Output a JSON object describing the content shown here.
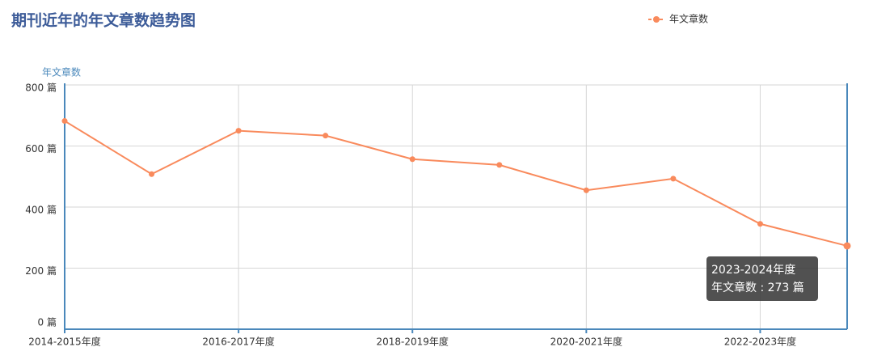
{
  "chart_data": {
    "type": "line",
    "title": "期刊近年的年文章数趋势图",
    "y_label": "年文章数",
    "categories": [
      "2014-2015年度",
      null,
      "2016-2017年度",
      null,
      "2018-2019年度",
      null,
      "2020-2021年度",
      null,
      "2022-2023年度",
      null
    ],
    "series": [
      {
        "name": "年文章数",
        "color": "#f98a5c",
        "values": [
          682,
          508,
          650,
          634,
          557,
          538,
          455,
          493,
          345,
          273
        ]
      }
    ],
    "ylim": [
      0,
      800
    ],
    "yticks": [
      {
        "value": 0,
        "label": "0 篇"
      },
      {
        "value": 200,
        "label": "200 篇"
      },
      {
        "value": 400,
        "label": "400 篇"
      },
      {
        "value": 600,
        "label": "600 篇"
      },
      {
        "value": 800,
        "label": "800 篇"
      }
    ],
    "grid": true,
    "legend": "top-right",
    "tooltip": {
      "title": "2023-2024年度",
      "text": "年文章数 : 273 篇"
    }
  }
}
